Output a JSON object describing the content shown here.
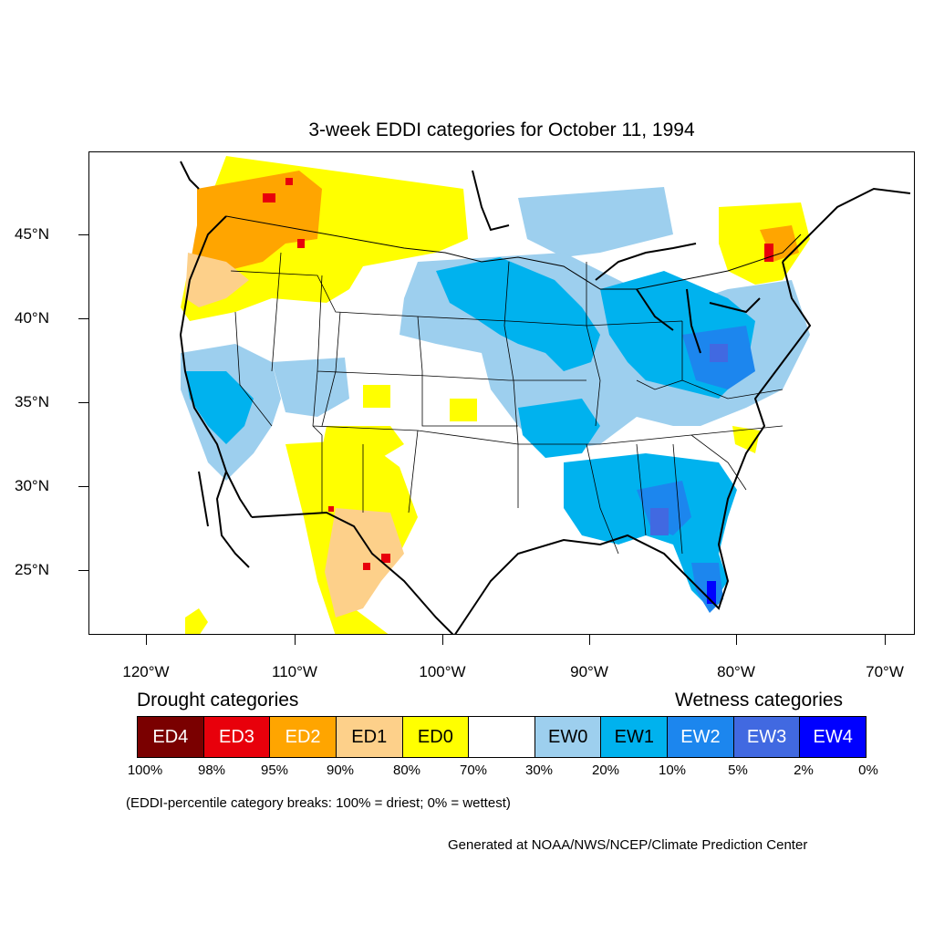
{
  "title": "3-week EDDI categories for October 11, 1994",
  "lat_labels": [
    "45°N",
    "40°N",
    "35°N",
    "30°N",
    "25°N"
  ],
  "lon_labels": [
    "120°W",
    "110°W",
    "100°W",
    "90°W",
    "80°W",
    "70°W"
  ],
  "legend": {
    "drought_heading": "Drought categories",
    "wetness_heading": "Wetness categories",
    "categories": [
      {
        "label": "ED4",
        "color": "#7a0000",
        "text_color": "#ffffff"
      },
      {
        "label": "ED3",
        "color": "#e8000b",
        "text_color": "#ffffff"
      },
      {
        "label": "ED2",
        "color": "#ffa500",
        "text_color": "#ffffff"
      },
      {
        "label": "ED1",
        "color": "#fdd08a",
        "text_color": "#000000"
      },
      {
        "label": "ED0",
        "color": "#ffff00",
        "text_color": "#000000"
      },
      {
        "label": "",
        "color": "#ffffff",
        "text_color": "#000000"
      },
      {
        "label": "EW0",
        "color": "#9dcfee",
        "text_color": "#000000"
      },
      {
        "label": "EW1",
        "color": "#00b2ee",
        "text_color": "#000000"
      },
      {
        "label": "EW2",
        "color": "#1c86ee",
        "text_color": "#ffffff"
      },
      {
        "label": "EW3",
        "color": "#4169e1",
        "text_color": "#ffffff"
      },
      {
        "label": "EW4",
        "color": "#0000ff",
        "text_color": "#ffffff"
      }
    ],
    "breaks": [
      "100%",
      "98%",
      "95%",
      "90%",
      "80%",
      "70%",
      "30%",
      "20%",
      "10%",
      "5%",
      "2%",
      "0%"
    ]
  },
  "note": "(EDDI-percentile category breaks: 100% = driest; 0% = wettest)",
  "credit": "Generated at NOAA/NWS/NCEP/Climate Prediction Center"
}
